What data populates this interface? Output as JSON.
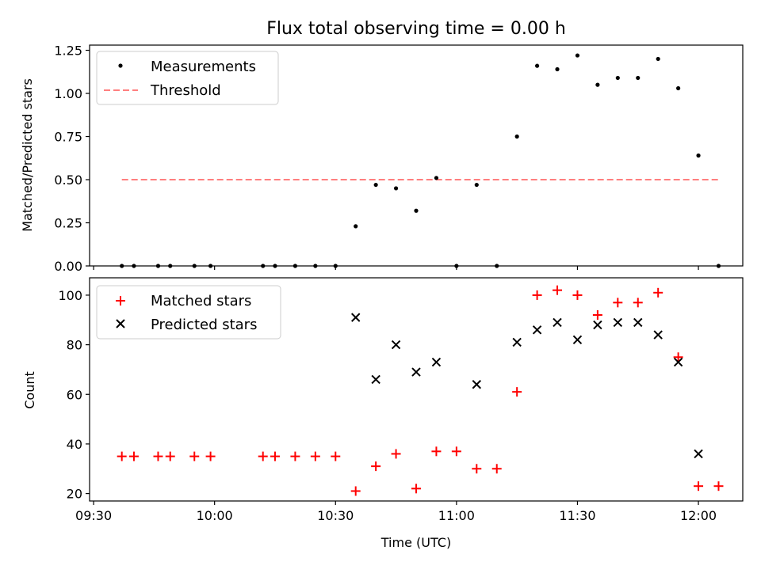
{
  "figure": {
    "title": "Flux total observing time = 0.00 h",
    "shared_xlabel": "Time (UTC)",
    "x_tick_labels": [
      "09:30",
      "10:00",
      "10:30",
      "11:00",
      "11:30",
      "12:00"
    ]
  },
  "chart_data": [
    {
      "type": "scatter",
      "ylabel": "Matched/Predicted stars",
      "xlim": [
        "09:29",
        "12:11"
      ],
      "ylim": [
        0,
        1.28
      ],
      "y_ticks": [
        "0.00",
        "0.25",
        "0.50",
        "0.75",
        "1.00",
        "1.25"
      ],
      "legend_position": "top-left",
      "series": [
        {
          "name": "Measurements",
          "color": "#000000",
          "marker": "dot",
          "x": [
            "09:37",
            "09:40",
            "09:46",
            "09:49",
            "09:55",
            "09:59",
            "10:12",
            "10:15",
            "10:20",
            "10:25",
            "10:30",
            "10:35",
            "10:40",
            "10:45",
            "10:50",
            "10:55",
            "11:00",
            "11:05",
            "11:10",
            "11:15",
            "11:20",
            "11:25",
            "11:30",
            "11:35",
            "11:40",
            "11:45",
            "11:50",
            "11:55",
            "12:00",
            "12:05"
          ],
          "y": [
            0,
            0,
            0,
            0,
            0,
            0,
            0,
            0,
            0,
            0,
            0,
            0.23,
            0.47,
            0.45,
            0.32,
            0.51,
            0,
            0.47,
            0,
            0.75,
            1.16,
            1.14,
            1.22,
            1.05,
            1.09,
            1.09,
            1.2,
            1.03,
            0.64,
            0
          ]
        },
        {
          "name": "Threshold",
          "color": "#ff7f7f",
          "style": "dashed",
          "x": [
            "09:37",
            "12:05"
          ],
          "y": [
            0.5,
            0.5
          ]
        }
      ]
    },
    {
      "type": "scatter",
      "ylabel": "Count",
      "xlabel": "Time (UTC)",
      "xlim": [
        "09:29",
        "12:11"
      ],
      "ylim": [
        17,
        107
      ],
      "y_ticks": [
        "20",
        "40",
        "60",
        "80",
        "100"
      ],
      "legend_position": "top-left",
      "series": [
        {
          "name": "Matched stars",
          "color": "#ff0000",
          "marker": "plus",
          "x": [
            "09:37",
            "09:40",
            "09:46",
            "09:49",
            "09:55",
            "09:59",
            "10:12",
            "10:15",
            "10:20",
            "10:25",
            "10:30",
            "10:35",
            "10:40",
            "10:45",
            "10:50",
            "10:55",
            "11:00",
            "11:05",
            "11:10",
            "11:15",
            "11:20",
            "11:25",
            "11:30",
            "11:35",
            "11:40",
            "11:45",
            "11:50",
            "11:55",
            "12:00",
            "12:05"
          ],
          "y": [
            35,
            35,
            35,
            35,
            35,
            35,
            35,
            35,
            35,
            35,
            35,
            21,
            31,
            36,
            22,
            37,
            37,
            30,
            30,
            61,
            100,
            102,
            100,
            92,
            97,
            97,
            101,
            75,
            23,
            23
          ]
        },
        {
          "name": "Predicted stars",
          "color": "#000000",
          "marker": "x",
          "x": [
            "10:35",
            "10:40",
            "10:45",
            "10:50",
            "10:55",
            "11:05",
            "11:15",
            "11:20",
            "11:25",
            "11:30",
            "11:35",
            "11:40",
            "11:45",
            "11:50",
            "11:55",
            "12:00"
          ],
          "y": [
            91,
            66,
            80,
            69,
            73,
            64,
            81,
            86,
            89,
            82,
            88,
            89,
            89,
            84,
            73,
            36
          ]
        }
      ]
    }
  ]
}
